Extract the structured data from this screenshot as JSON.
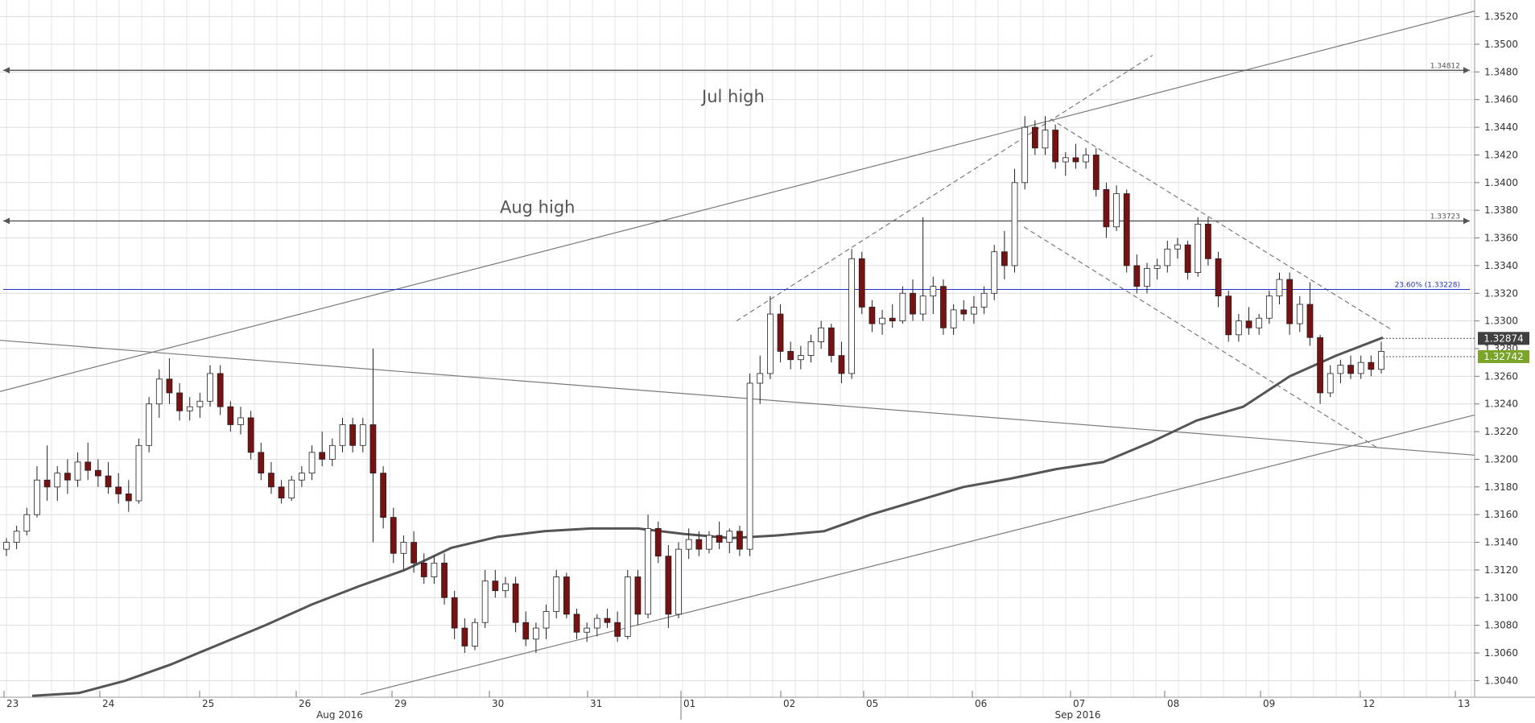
{
  "chart_data": {
    "type": "candlestick",
    "title": "",
    "xlabel": "",
    "ylabel": "",
    "ylim": [
      1.3028,
      1.3532
    ],
    "y_ticks": [
      "1.3040",
      "1.3060",
      "1.3080",
      "1.3100",
      "1.3120",
      "1.3140",
      "1.3160",
      "1.3180",
      "1.3200",
      "1.3220",
      "1.3240",
      "1.3260",
      "1.3280",
      "1.3300",
      "1.3320",
      "1.3340",
      "1.3360",
      "1.3380",
      "1.3400",
      "1.3420",
      "1.3440",
      "1.3460",
      "1.3480",
      "1.3500",
      "1.3520"
    ],
    "x_day_labels": [
      "23",
      "24",
      "25",
      "26",
      "29",
      "30",
      "31",
      "01",
      "02",
      "05",
      "06",
      "07",
      "08",
      "09",
      "12",
      "13"
    ],
    "x_month_labels": [
      "Aug 2016",
      "Sep 2016"
    ],
    "grid": true,
    "candles": [
      [
        1.3135,
        1.3143,
        1.313,
        1.314
      ],
      [
        1.314,
        1.3152,
        1.3135,
        1.3148
      ],
      [
        1.3148,
        1.3165,
        1.3145,
        1.316
      ],
      [
        1.316,
        1.3195,
        1.3158,
        1.3185
      ],
      [
        1.3185,
        1.321,
        1.317,
        1.318
      ],
      [
        1.318,
        1.3195,
        1.317,
        1.319
      ],
      [
        1.319,
        1.32,
        1.3175,
        1.3185
      ],
      [
        1.3185,
        1.3205,
        1.318,
        1.3198
      ],
      [
        1.3198,
        1.3212,
        1.3185,
        1.3192
      ],
      [
        1.3192,
        1.32,
        1.318,
        1.3188
      ],
      [
        1.3188,
        1.3198,
        1.3175,
        1.318
      ],
      [
        1.318,
        1.319,
        1.3168,
        1.3175
      ],
      [
        1.3175,
        1.3185,
        1.3162,
        1.317
      ],
      [
        1.317,
        1.3215,
        1.3168,
        1.321
      ],
      [
        1.321,
        1.3245,
        1.3205,
        1.324
      ],
      [
        1.324,
        1.3265,
        1.323,
        1.3258
      ],
      [
        1.3258,
        1.3273,
        1.324,
        1.3248
      ],
      [
        1.3248,
        1.3255,
        1.3228,
        1.3235
      ],
      [
        1.3235,
        1.3245,
        1.3228,
        1.3238
      ],
      [
        1.3238,
        1.3248,
        1.323,
        1.3242
      ],
      [
        1.3242,
        1.3268,
        1.3238,
        1.3262
      ],
      [
        1.3262,
        1.3268,
        1.3232,
        1.3238
      ],
      [
        1.3238,
        1.3242,
        1.322,
        1.3225
      ],
      [
        1.3225,
        1.3238,
        1.3218,
        1.323
      ],
      [
        1.323,
        1.3235,
        1.32,
        1.3205
      ],
      [
        1.3205,
        1.3212,
        1.3185,
        1.319
      ],
      [
        1.319,
        1.3198,
        1.3175,
        1.318
      ],
      [
        1.318,
        1.3185,
        1.3168,
        1.3172
      ],
      [
        1.3172,
        1.3188,
        1.317,
        1.3185
      ],
      [
        1.3185,
        1.3195,
        1.318,
        1.319
      ],
      [
        1.319,
        1.321,
        1.3185,
        1.3205
      ],
      [
        1.3205,
        1.322,
        1.3195,
        1.32
      ],
      [
        1.32,
        1.3215,
        1.3195,
        1.321
      ],
      [
        1.321,
        1.323,
        1.3205,
        1.3225
      ],
      [
        1.3225,
        1.323,
        1.3205,
        1.321
      ],
      [
        1.321,
        1.323,
        1.3205,
        1.3225
      ],
      [
        1.3225,
        1.328,
        1.314,
        1.319
      ],
      [
        1.319,
        1.3195,
        1.315,
        1.3158
      ],
      [
        1.3158,
        1.3165,
        1.3125,
        1.3132
      ],
      [
        1.3132,
        1.3145,
        1.312,
        1.314
      ],
      [
        1.314,
        1.3148,
        1.3118,
        1.3125
      ],
      [
        1.3125,
        1.3132,
        1.311,
        1.3115
      ],
      [
        1.3115,
        1.313,
        1.311,
        1.3125
      ],
      [
        1.3125,
        1.3132,
        1.3095,
        1.31
      ],
      [
        1.31,
        1.3105,
        1.307,
        1.3078
      ],
      [
        1.3078,
        1.3085,
        1.306,
        1.3065
      ],
      [
        1.3065,
        1.3085,
        1.3062,
        1.3082
      ],
      [
        1.3082,
        1.312,
        1.3078,
        1.3112
      ],
      [
        1.3112,
        1.312,
        1.31,
        1.3105
      ],
      [
        1.3105,
        1.3115,
        1.31,
        1.311
      ],
      [
        1.311,
        1.3115,
        1.3075,
        1.3082
      ],
      [
        1.3082,
        1.309,
        1.3065,
        1.307
      ],
      [
        1.307,
        1.3082,
        1.306,
        1.3078
      ],
      [
        1.3078,
        1.3095,
        1.307,
        1.309
      ],
      [
        1.309,
        1.312,
        1.3085,
        1.3115
      ],
      [
        1.3115,
        1.3118,
        1.3085,
        1.3088
      ],
      [
        1.3088,
        1.3092,
        1.307,
        1.3075
      ],
      [
        1.3075,
        1.3082,
        1.3068,
        1.3078
      ],
      [
        1.3078,
        1.3088,
        1.3072,
        1.3085
      ],
      [
        1.3085,
        1.3092,
        1.3078,
        1.3082
      ],
      [
        1.3082,
        1.309,
        1.3068,
        1.3072
      ],
      [
        1.3072,
        1.312,
        1.307,
        1.3115
      ],
      [
        1.3115,
        1.312,
        1.308,
        1.3088
      ],
      [
        1.3088,
        1.316,
        1.3085,
        1.315
      ],
      [
        1.315,
        1.3155,
        1.3125,
        1.313
      ],
      [
        1.313,
        1.3138,
        1.3078,
        1.3088
      ],
      [
        1.3088,
        1.314,
        1.3085,
        1.3135
      ],
      [
        1.3135,
        1.315,
        1.3128,
        1.3142
      ],
      [
        1.3142,
        1.3148,
        1.313,
        1.3135
      ],
      [
        1.3135,
        1.3148,
        1.3132,
        1.3145
      ],
      [
        1.3145,
        1.3155,
        1.3135,
        1.314
      ],
      [
        1.314,
        1.315,
        1.3132,
        1.3148
      ],
      [
        1.3148,
        1.3152,
        1.313,
        1.3135
      ],
      [
        1.3135,
        1.3262,
        1.313,
        1.3255
      ],
      [
        1.3255,
        1.3275,
        1.324,
        1.3262
      ],
      [
        1.3262,
        1.3318,
        1.3258,
        1.3305
      ],
      [
        1.3305,
        1.3312,
        1.327,
        1.3278
      ],
      [
        1.3278,
        1.3285,
        1.3265,
        1.3272
      ],
      [
        1.3272,
        1.3282,
        1.3265,
        1.3275
      ],
      [
        1.3275,
        1.329,
        1.327,
        1.3285
      ],
      [
        1.3285,
        1.33,
        1.328,
        1.3295
      ],
      [
        1.3295,
        1.3298,
        1.327,
        1.3275
      ],
      [
        1.3275,
        1.3285,
        1.3255,
        1.3262
      ],
      [
        1.3262,
        1.3352,
        1.3258,
        1.3345
      ],
      [
        1.3345,
        1.335,
        1.3305,
        1.331
      ],
      [
        1.331,
        1.3315,
        1.3292,
        1.3298
      ],
      [
        1.3298,
        1.3308,
        1.329,
        1.3302
      ],
      [
        1.3302,
        1.3312,
        1.3295,
        1.33
      ],
      [
        1.33,
        1.3325,
        1.3298,
        1.332
      ],
      [
        1.332,
        1.333,
        1.33,
        1.3305
      ],
      [
        1.3305,
        1.3375,
        1.33,
        1.3318
      ],
      [
        1.3318,
        1.3332,
        1.3305,
        1.3325
      ],
      [
        1.3325,
        1.333,
        1.329,
        1.3295
      ],
      [
        1.3295,
        1.3312,
        1.329,
        1.3308
      ],
      [
        1.3308,
        1.3315,
        1.33,
        1.3305
      ],
      [
        1.3305,
        1.3318,
        1.3298,
        1.331
      ],
      [
        1.331,
        1.3325,
        1.3305,
        1.332
      ],
      [
        1.332,
        1.3355,
        1.3315,
        1.335
      ],
      [
        1.335,
        1.3365,
        1.333,
        1.334
      ],
      [
        1.334,
        1.341,
        1.3335,
        1.34
      ],
      [
        1.34,
        1.3448,
        1.3395,
        1.344
      ],
      [
        1.344,
        1.3445,
        1.342,
        1.3425
      ],
      [
        1.3425,
        1.3448,
        1.342,
        1.3438
      ],
      [
        1.3438,
        1.3442,
        1.341,
        1.3415
      ],
      [
        1.3415,
        1.3422,
        1.3405,
        1.3418
      ],
      [
        1.3418,
        1.3428,
        1.341,
        1.3415
      ],
      [
        1.3415,
        1.3425,
        1.341,
        1.342
      ],
      [
        1.342,
        1.3425,
        1.339,
        1.3395
      ],
      [
        1.3395,
        1.34,
        1.336,
        1.3368
      ],
      [
        1.3368,
        1.3398,
        1.3365,
        1.3392
      ],
      [
        1.3392,
        1.3395,
        1.3335,
        1.334
      ],
      [
        1.334,
        1.3348,
        1.332,
        1.3325
      ],
      [
        1.3325,
        1.3342,
        1.332,
        1.3338
      ],
      [
        1.3338,
        1.3345,
        1.333,
        1.334
      ],
      [
        1.334,
        1.3358,
        1.3335,
        1.3352
      ],
      [
        1.3352,
        1.336,
        1.3345,
        1.3355
      ],
      [
        1.3355,
        1.3358,
        1.333,
        1.3335
      ],
      [
        1.3335,
        1.3375,
        1.3332,
        1.337
      ],
      [
        1.337,
        1.3375,
        1.334,
        1.3345
      ],
      [
        1.3345,
        1.335,
        1.331,
        1.3318
      ],
      [
        1.3318,
        1.3322,
        1.3285,
        1.329
      ],
      [
        1.329,
        1.3305,
        1.3285,
        1.33
      ],
      [
        1.33,
        1.331,
        1.329,
        1.3295
      ],
      [
        1.3295,
        1.3305,
        1.329,
        1.3302
      ],
      [
        1.3302,
        1.3322,
        1.3298,
        1.3318
      ],
      [
        1.3318,
        1.3335,
        1.3312,
        1.333
      ],
      [
        1.333,
        1.3335,
        1.329,
        1.3298
      ],
      [
        1.3298,
        1.3318,
        1.3292,
        1.3312
      ],
      [
        1.3312,
        1.3328,
        1.3282,
        1.3288
      ],
      [
        1.3288,
        1.329,
        1.324,
        1.3248
      ],
      [
        1.3248,
        1.3268,
        1.3245,
        1.3262
      ],
      [
        1.3262,
        1.3272,
        1.3255,
        1.3268
      ],
      [
        1.3268,
        1.3275,
        1.3258,
        1.3262
      ],
      [
        1.3262,
        1.3275,
        1.3258,
        1.327
      ],
      [
        1.327,
        1.3275,
        1.326,
        1.3265
      ],
      [
        1.3265,
        1.3285,
        1.3262,
        1.3278
      ]
    ],
    "ma200": [
      1.3029,
      1.3031,
      1.304,
      1.3052,
      1.3066,
      1.308,
      1.3095,
      1.3108,
      1.312,
      1.3136,
      1.3144,
      1.3148,
      1.315,
      1.315,
      1.3146,
      1.3143,
      1.3145,
      1.3148,
      1.316,
      1.317,
      1.318,
      1.3186,
      1.3193,
      1.3198,
      1.3212,
      1.3228,
      1.3238,
      1.326,
      1.3275,
      1.3288
    ],
    "horizontal_levels": [
      {
        "label": "1.34812",
        "value": 1.34812
      },
      {
        "label": "1.33723",
        "value": 1.33723
      },
      {
        "label": "23.60% (1.33228)",
        "value": 1.33228,
        "color": "#2233cc"
      }
    ],
    "annotations": [
      {
        "text": "Jul high"
      },
      {
        "text": "Aug high"
      }
    ],
    "price_badges": [
      {
        "text": "1.32874",
        "value": 1.32874,
        "color": "#404040"
      },
      {
        "text": "1.32742",
        "value": 1.32742,
        "color": "#7aa528"
      }
    ],
    "colors": {
      "bull": "#ffffff",
      "bear": "#7a1010",
      "wick": "#222222",
      "grid": "#d9d9d9"
    }
  }
}
